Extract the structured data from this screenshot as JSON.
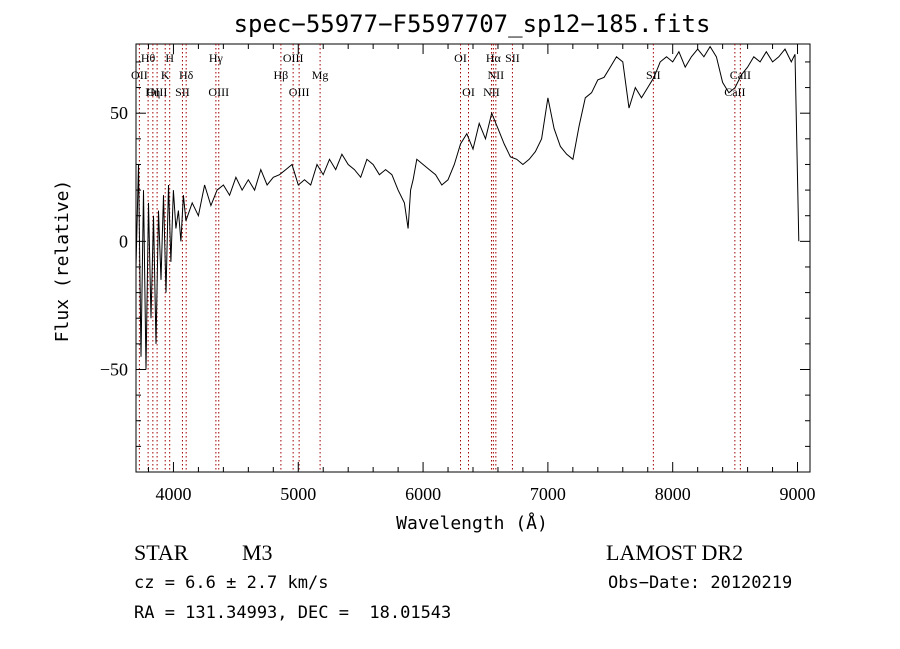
{
  "chart_data": {
    "type": "line",
    "title": "spec−55977−F5597707_sp12−185.fits",
    "xlabel": "Wavelength (Å)",
    "ylabel": "Flux (relative)",
    "xlim": [
      3700,
      9100
    ],
    "ylim": [
      -90,
      77
    ],
    "x_ticks": [
      4000,
      5000,
      6000,
      7000,
      8000,
      9000
    ],
    "y_ticks": [
      -50,
      0,
      50
    ],
    "series": [
      {
        "x": [
          3700,
          3720,
          3740,
          3760,
          3780,
          3800,
          3820,
          3840,
          3860,
          3880,
          3900,
          3920,
          3940,
          3960,
          3980,
          4000,
          4020,
          4040,
          4060,
          4080,
          4100,
          4150,
          4200,
          4250,
          4300,
          4350,
          4400,
          4450,
          4500,
          4550,
          4600,
          4650,
          4700,
          4750,
          4800,
          4850,
          4900,
          4950,
          5000,
          5050,
          5100,
          5150,
          5200,
          5250,
          5300,
          5350,
          5400,
          5450,
          5500,
          5550,
          5600,
          5650,
          5700,
          5750,
          5800,
          5850,
          5880,
          5900,
          5920,
          5950,
          6000,
          6050,
          6100,
          6150,
          6200,
          6250,
          6300,
          6350,
          6400,
          6450,
          6500,
          6550,
          6600,
          6650,
          6700,
          6750,
          6800,
          6850,
          6900,
          6950,
          7000,
          7050,
          7100,
          7150,
          7200,
          7250,
          7300,
          7350,
          7400,
          7450,
          7500,
          7550,
          7600,
          7650,
          7700,
          7750,
          7800,
          7850,
          7900,
          7950,
          8000,
          8050,
          8100,
          8150,
          8200,
          8250,
          8300,
          8350,
          8400,
          8450,
          8500,
          8550,
          8600,
          8650,
          8700,
          8750,
          8800,
          8850,
          8900,
          8950,
          8980,
          9000,
          9010
        ],
        "values": [
          -10,
          30,
          -45,
          20,
          -50,
          15,
          -30,
          10,
          -40,
          12,
          -15,
          18,
          -20,
          22,
          -8,
          20,
          5,
          12,
          0,
          18,
          8,
          15,
          10,
          22,
          14,
          20,
          22,
          18,
          25,
          20,
          24,
          20,
          28,
          22,
          25,
          26,
          28,
          30,
          22,
          24,
          22,
          30,
          26,
          32,
          28,
          34,
          30,
          28,
          25,
          32,
          30,
          26,
          28,
          26,
          20,
          15,
          5,
          20,
          24,
          32,
          30,
          28,
          26,
          22,
          24,
          30,
          38,
          42,
          36,
          46,
          40,
          50,
          44,
          38,
          33,
          32,
          30,
          32,
          35,
          40,
          56,
          44,
          37,
          34,
          32,
          45,
          56,
          58,
          63,
          64,
          68,
          72,
          70,
          52,
          60,
          56,
          60,
          64,
          70,
          72,
          70,
          74,
          68,
          72,
          75,
          72,
          76,
          72,
          62,
          58,
          60,
          65,
          68,
          72,
          70,
          74,
          70,
          72,
          75,
          70,
          73,
          25,
          0
        ]
      }
    ],
    "lines": [
      {
        "label": "Hθ",
        "wave": 3797,
        "row": 0
      },
      {
        "label": "OII",
        "wave": 3727,
        "row": 1
      },
      {
        "label": "OIII",
        "wave": 3869,
        "row": 2
      },
      {
        "label": "Hη",
        "wave": 3835,
        "row": 2
      },
      {
        "label": "H",
        "wave": 3970,
        "row": 0
      },
      {
        "label": "K",
        "wave": 3934,
        "row": 1
      },
      {
        "label": "Hδ",
        "wave": 4102,
        "row": 1
      },
      {
        "label": "SII",
        "wave": 4072,
        "row": 2
      },
      {
        "label": "Hγ",
        "wave": 4340,
        "row": 0
      },
      {
        "label": "OIII",
        "wave": 4363,
        "row": 2
      },
      {
        "label": "OIII",
        "wave": 4959,
        "row": 0
      },
      {
        "label": "Hβ",
        "wave": 4861,
        "row": 1
      },
      {
        "label": "Mg",
        "wave": 5175,
        "row": 1
      },
      {
        "label": "OIII",
        "wave": 5007,
        "row": 2
      },
      {
        "label": "OI",
        "wave": 6300,
        "row": 0
      },
      {
        "label": "OI",
        "wave": 6364,
        "row": 2
      },
      {
        "label": "Hα",
        "wave": 6563,
        "row": 0
      },
      {
        "label": "SII",
        "wave": 6716,
        "row": 0
      },
      {
        "label": "NII",
        "wave": 6583,
        "row": 1
      },
      {
        "label": "NII",
        "wave": 6548,
        "row": 2
      },
      {
        "label": "SII",
        "wave": 7845,
        "row": 1
      },
      {
        "label": "CaII",
        "wave": 8542,
        "row": 1
      },
      {
        "label": "CaII",
        "wave": 8498,
        "row": 2
      }
    ]
  },
  "footer": {
    "object_class": "STAR",
    "subclass": "M3",
    "survey": "LAMOST DR2",
    "cz": "cz = 6.6 ± 2.7 km/s",
    "obs_date": "Obs−Date: 20120219",
    "coords": "RA = 131.34993, DEC =  18.01543"
  }
}
